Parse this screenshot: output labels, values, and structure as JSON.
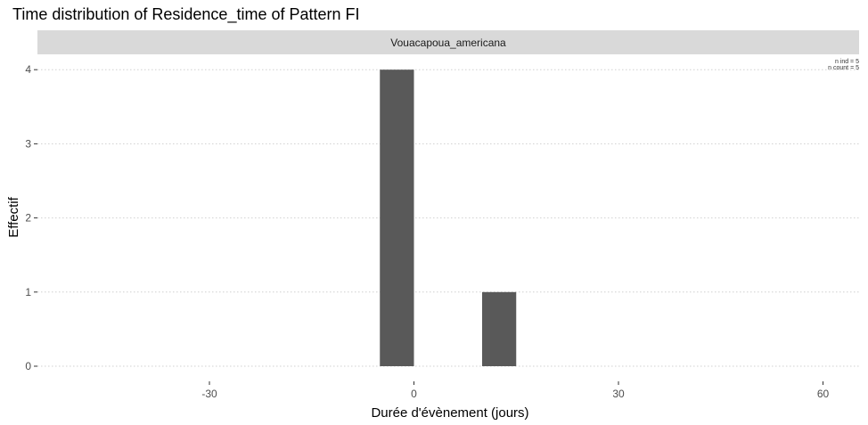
{
  "chart_data": {
    "type": "bar",
    "title": "Time distribution of Residence_time of Pattern FI",
    "facet_label": "Vouacapoua_americana",
    "xlabel": "Durée d'évènement (jours)",
    "ylabel": "Effectif",
    "bins": [
      {
        "x_start": -5,
        "x_end": 0,
        "count": 4
      },
      {
        "x_start": 10,
        "x_end": 15,
        "count": 1
      }
    ],
    "xlim": [
      -55,
      65
    ],
    "ylim": [
      0,
      4.2
    ],
    "x_ticks": [
      -30,
      0,
      30,
      60
    ],
    "y_ticks": [
      0,
      1,
      2,
      3,
      4
    ],
    "grid": "horizontal dotted",
    "annotations": [
      "n ind =  5",
      "n count =  5"
    ],
    "bar_color": "#595959",
    "strip_color": "#d9d9d9"
  }
}
